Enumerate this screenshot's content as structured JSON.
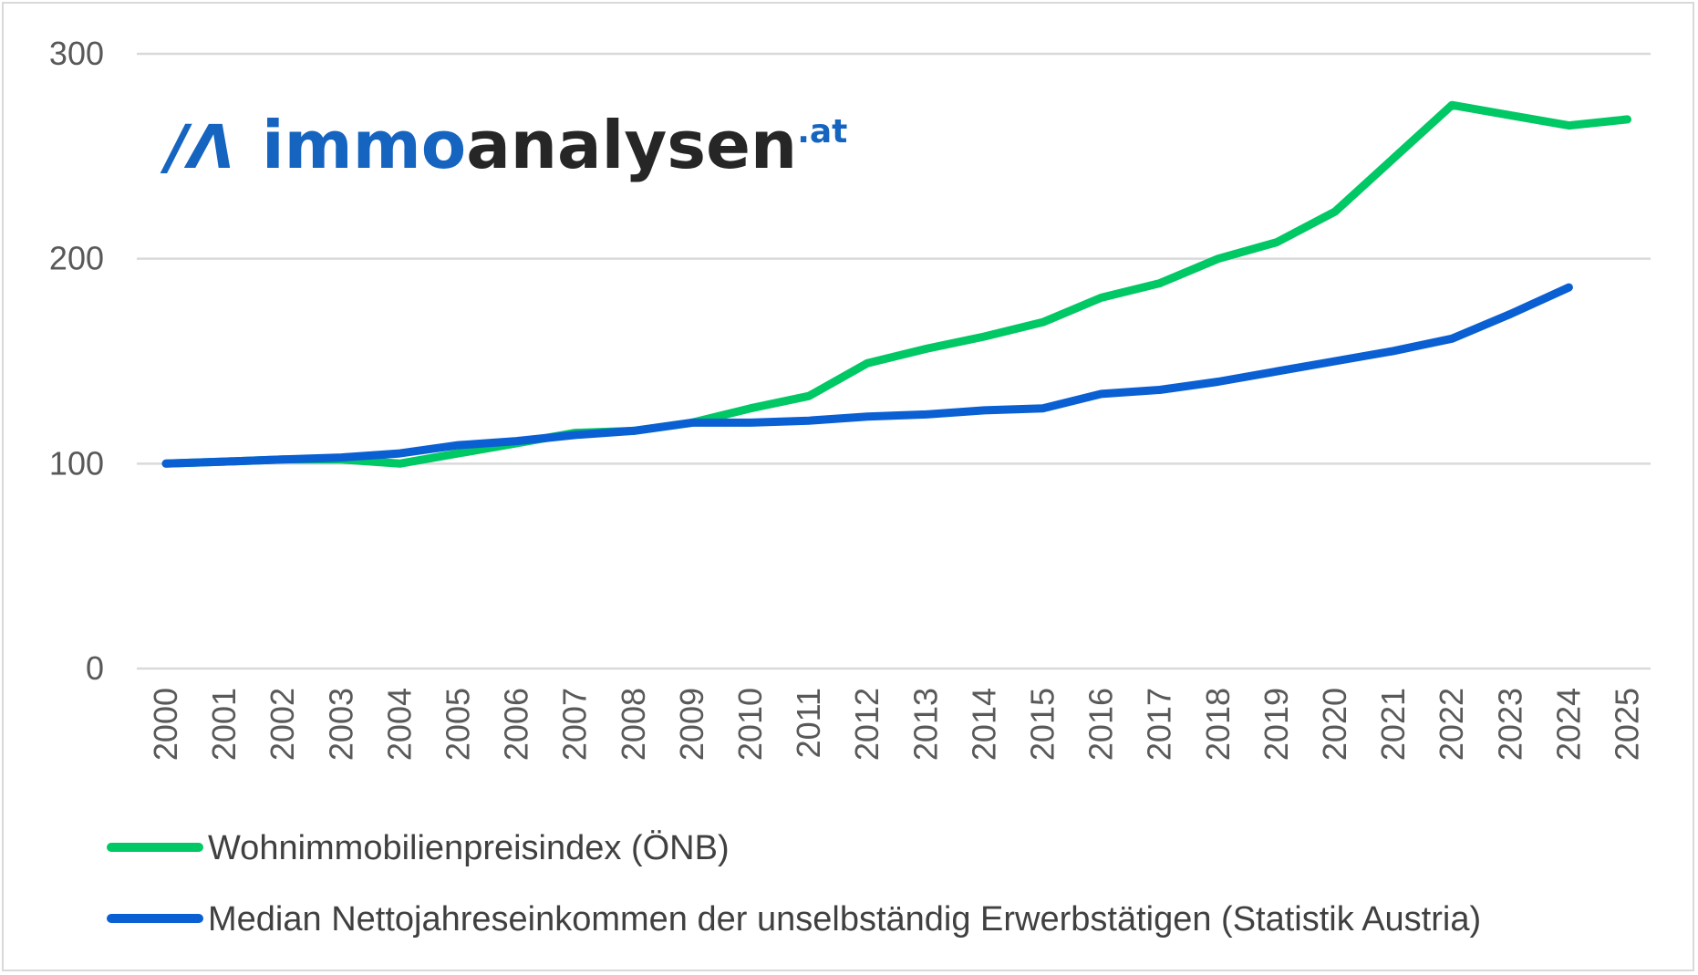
{
  "logo": {
    "mark": "/Λ",
    "part1": "immo",
    "part2": "analysen",
    "suffix": ".at",
    "colors": {
      "blue": "#1565C0",
      "dark": "#262626"
    }
  },
  "chart_data": {
    "type": "line",
    "title": "",
    "xlabel": "",
    "ylabel": "",
    "ylim": [
      0,
      300
    ],
    "yticks": [
      0,
      100,
      200,
      300
    ],
    "grid": true,
    "legend_position": "bottom-left",
    "categories": [
      "2000",
      "2001",
      "2002",
      "2003",
      "2004",
      "2005",
      "2006",
      "2007",
      "2008",
      "2009",
      "2010",
      "2011",
      "2012",
      "2013",
      "2014",
      "2015",
      "2016",
      "2017",
      "2018",
      "2019",
      "2020",
      "2021",
      "2022",
      "2023",
      "2024",
      "2025"
    ],
    "series": [
      {
        "name": "Wohnimmobilienpreisindex (ÖNB)",
        "color": "#00C864",
        "values": [
          100,
          101,
          102,
          102,
          100,
          105,
          110,
          115,
          116,
          120,
          127,
          133,
          149,
          156,
          162,
          169,
          181,
          188,
          200,
          208,
          223,
          249,
          275,
          270,
          265,
          268
        ]
      },
      {
        "name": "Median Nettojahreseinkommen der unselbständig Erwerbstätigen (Statistik Austria)",
        "color": "#0A5FD3",
        "values": [
          100,
          101,
          102,
          103,
          105,
          109,
          111,
          114,
          116,
          120,
          120,
          121,
          123,
          124,
          126,
          127,
          134,
          136,
          140,
          145,
          150,
          155,
          161,
          173,
          186,
          null
        ]
      }
    ]
  }
}
